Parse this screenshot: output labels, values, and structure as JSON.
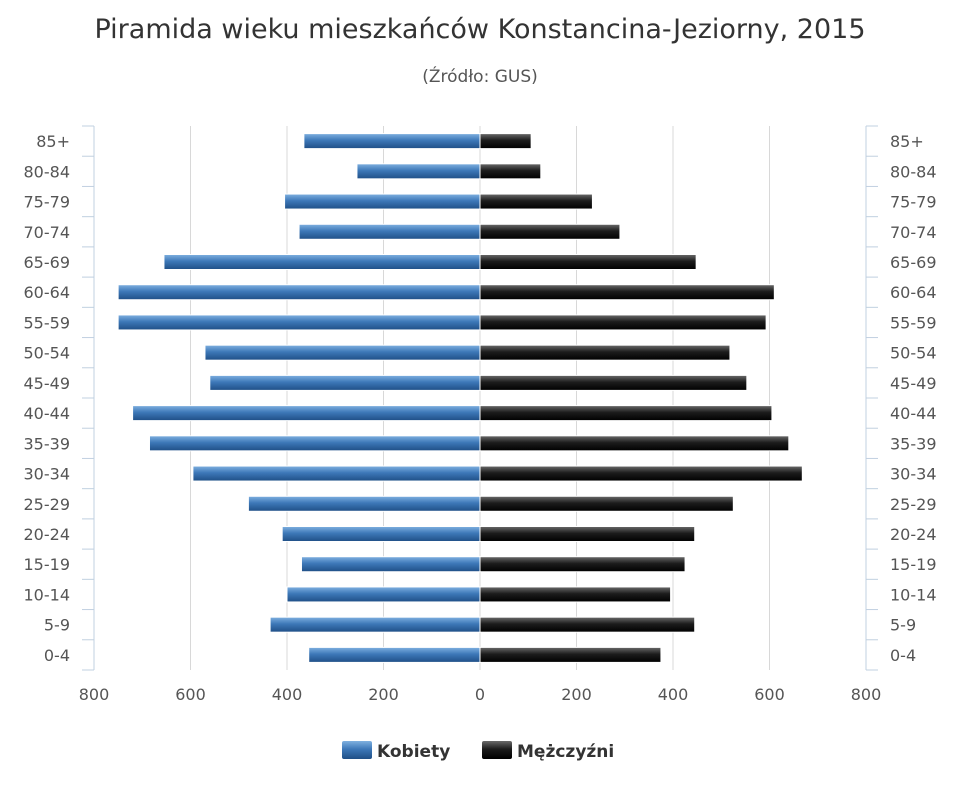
{
  "chart_data": {
    "type": "bar",
    "orientation": "horizontal-pyramid",
    "title": "Piramida wieku mieszkańców Konstancina-Jeziorny, 2015",
    "subtitle": "(Źródło: GUS)",
    "categories": [
      "0-4",
      "5-9",
      "10-14",
      "15-19",
      "20-24",
      "25-29",
      "30-34",
      "35-39",
      "40-44",
      "45-49",
      "50-54",
      "55-59",
      "60-64",
      "65-69",
      "70-74",
      "75-79",
      "80-84",
      "85+"
    ],
    "series": [
      {
        "name": "Kobiety",
        "side": "left",
        "values": [
          355,
          435,
          400,
          370,
          410,
          480,
          595,
          685,
          720,
          560,
          570,
          750,
          750,
          655,
          375,
          405,
          255,
          365
        ]
      },
      {
        "name": "Mężczyźni",
        "side": "right",
        "values": [
          375,
          445,
          395,
          425,
          445,
          525,
          668,
          640,
          605,
          553,
          518,
          593,
          610,
          448,
          290,
          233,
          126,
          106
        ]
      }
    ],
    "xlim": [
      -800,
      800
    ],
    "x_ticks": [
      -800,
      -600,
      -400,
      -200,
      0,
      200,
      400,
      600,
      800
    ],
    "x_tick_labels": [
      "800",
      "600",
      "400",
      "200",
      "0",
      "200",
      "400",
      "600",
      "800"
    ],
    "grid": true,
    "legend_position": "bottom",
    "colors": {
      "Kobiety": "#3d78b8",
      "Mężczyźni": "#1c1c1c"
    }
  }
}
